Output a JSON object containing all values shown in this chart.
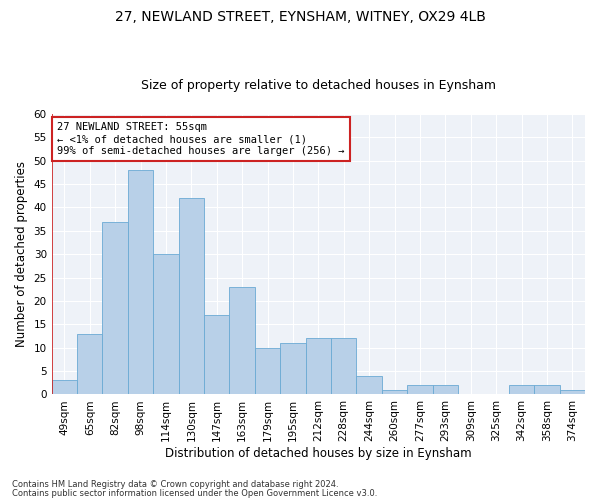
{
  "title1": "27, NEWLAND STREET, EYNSHAM, WITNEY, OX29 4LB",
  "title2": "Size of property relative to detached houses in Eynsham",
  "xlabel": "Distribution of detached houses by size in Eynsham",
  "ylabel": "Number of detached properties",
  "categories": [
    "49sqm",
    "65sqm",
    "82sqm",
    "98sqm",
    "114sqm",
    "130sqm",
    "147sqm",
    "163sqm",
    "179sqm",
    "195sqm",
    "212sqm",
    "228sqm",
    "244sqm",
    "260sqm",
    "277sqm",
    "293sqm",
    "309sqm",
    "325sqm",
    "342sqm",
    "358sqm",
    "374sqm"
  ],
  "values": [
    3,
    13,
    37,
    48,
    30,
    42,
    17,
    23,
    10,
    11,
    12,
    12,
    4,
    1,
    2,
    2,
    0,
    0,
    2,
    2,
    1
  ],
  "bar_color": "#b8d0e8",
  "bar_edge_color": "#6aaad4",
  "highlight_color": "#cc2222",
  "annotation_text": "27 NEWLAND STREET: 55sqm\n← <1% of detached houses are smaller (1)\n99% of semi-detached houses are larger (256) →",
  "annotation_box_color": "white",
  "annotation_box_edge_color": "#cc2222",
  "ylim": [
    0,
    60
  ],
  "yticks": [
    0,
    5,
    10,
    15,
    20,
    25,
    30,
    35,
    40,
    45,
    50,
    55,
    60
  ],
  "footer1": "Contains HM Land Registry data © Crown copyright and database right 2024.",
  "footer2": "Contains public sector information licensed under the Open Government Licence v3.0.",
  "plot_background": "#eef2f8",
  "title1_fontsize": 10,
  "title2_fontsize": 9,
  "xlabel_fontsize": 8.5,
  "ylabel_fontsize": 8.5,
  "tick_fontsize": 7.5,
  "annotation_fontsize": 7.5,
  "footer_fontsize": 6
}
